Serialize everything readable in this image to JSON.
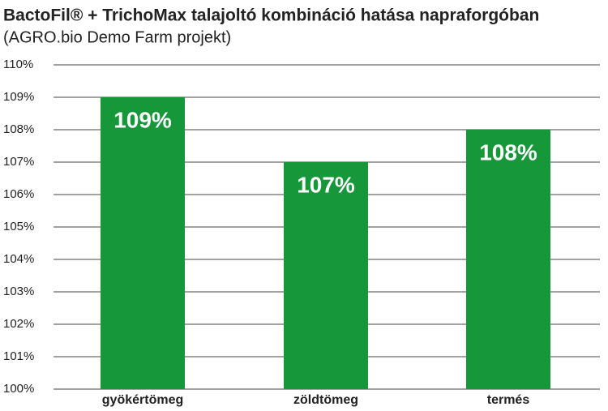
{
  "chart_data": {
    "type": "bar",
    "title": "BactoFil® + TrichoMax talajoltó kombináció hatása napraforgóban",
    "subtitle": "(AGRO.bio Demo Farm projekt)",
    "categories": [
      "gyökértömeg",
      "zöldtömeg",
      "termés"
    ],
    "values": [
      109,
      107,
      108
    ],
    "value_labels": [
      "109%",
      "107%",
      "108%"
    ],
    "color": "#16973a",
    "ylim": [
      100,
      110
    ],
    "yticks": [
      {
        "value": 100,
        "label": "100%"
      },
      {
        "value": 101,
        "label": "101%"
      },
      {
        "value": 102,
        "label": "102%"
      },
      {
        "value": 103,
        "label": "103%"
      },
      {
        "value": 104,
        "label": "104%"
      },
      {
        "value": 105,
        "label": "105%"
      },
      {
        "value": 106,
        "label": "106%"
      },
      {
        "value": 107,
        "label": "107%"
      },
      {
        "value": 108,
        "label": "108%"
      },
      {
        "value": 109,
        "label": "109%"
      },
      {
        "value": 110,
        "label": "110%"
      }
    ],
    "grid": true
  }
}
